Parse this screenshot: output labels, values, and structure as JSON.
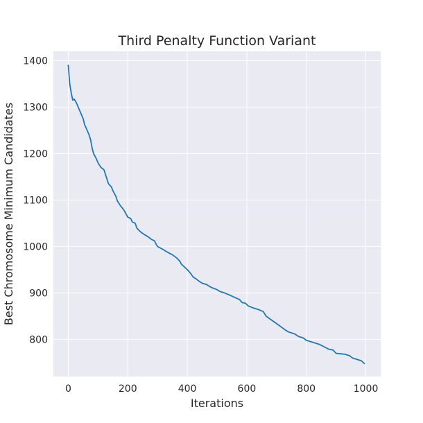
{
  "chart_data": {
    "type": "line",
    "title": "Third Penalty Function Variant",
    "xlabel": "Iterations",
    "ylabel": "Best Chromosome Minimum Candidates",
    "xlim": [
      -50,
      1050
    ],
    "ylim": [
      720,
      1420
    ],
    "xticks": [
      0,
      200,
      400,
      600,
      800,
      1000
    ],
    "yticks": [
      800,
      900,
      1000,
      1100,
      1200,
      1300,
      1400
    ],
    "grid": true,
    "background": "#eaeaf2",
    "grid_color": "#ffffff",
    "series": [
      {
        "color": "#1f77b4",
        "points": [
          [
            0,
            1390
          ],
          [
            5,
            1350
          ],
          [
            10,
            1330
          ],
          [
            15,
            1315
          ],
          [
            20,
            1317
          ],
          [
            25,
            1312
          ],
          [
            30,
            1305
          ],
          [
            40,
            1290
          ],
          [
            50,
            1275
          ],
          [
            55,
            1262
          ],
          [
            60,
            1255
          ],
          [
            70,
            1240
          ],
          [
            75,
            1230
          ],
          [
            80,
            1212
          ],
          [
            85,
            1200
          ],
          [
            95,
            1188
          ],
          [
            100,
            1180
          ],
          [
            110,
            1170
          ],
          [
            120,
            1165
          ],
          [
            125,
            1155
          ],
          [
            130,
            1145
          ],
          [
            135,
            1135
          ],
          [
            145,
            1128
          ],
          [
            150,
            1120
          ],
          [
            160,
            1108
          ],
          [
            165,
            1098
          ],
          [
            175,
            1088
          ],
          [
            185,
            1080
          ],
          [
            190,
            1075
          ],
          [
            200,
            1063
          ],
          [
            210,
            1060
          ],
          [
            215,
            1053
          ],
          [
            225,
            1050
          ],
          [
            230,
            1040
          ],
          [
            240,
            1033
          ],
          [
            250,
            1028
          ],
          [
            260,
            1024
          ],
          [
            270,
            1020
          ],
          [
            280,
            1015
          ],
          [
            290,
            1012
          ],
          [
            295,
            1005
          ],
          [
            300,
            1000
          ],
          [
            320,
            993
          ],
          [
            335,
            987
          ],
          [
            350,
            982
          ],
          [
            365,
            975
          ],
          [
            375,
            968
          ],
          [
            380,
            962
          ],
          [
            400,
            950
          ],
          [
            410,
            943
          ],
          [
            420,
            934
          ],
          [
            430,
            930
          ],
          [
            440,
            925
          ],
          [
            450,
            921
          ],
          [
            465,
            918
          ],
          [
            480,
            912
          ],
          [
            500,
            907
          ],
          [
            510,
            903
          ],
          [
            525,
            900
          ],
          [
            540,
            896
          ],
          [
            560,
            890
          ],
          [
            575,
            886
          ],
          [
            585,
            879
          ],
          [
            595,
            878
          ],
          [
            605,
            872
          ],
          [
            620,
            868
          ],
          [
            640,
            864
          ],
          [
            655,
            860
          ],
          [
            665,
            850
          ],
          [
            680,
            843
          ],
          [
            700,
            834
          ],
          [
            715,
            827
          ],
          [
            730,
            820
          ],
          [
            740,
            816
          ],
          [
            760,
            812
          ],
          [
            775,
            806
          ],
          [
            790,
            803
          ],
          [
            800,
            798
          ],
          [
            815,
            795
          ],
          [
            830,
            792
          ],
          [
            845,
            789
          ],
          [
            860,
            784
          ],
          [
            875,
            779
          ],
          [
            890,
            777
          ],
          [
            900,
            770
          ],
          [
            915,
            769
          ],
          [
            930,
            768
          ],
          [
            945,
            765
          ],
          [
            955,
            760
          ],
          [
            970,
            757
          ],
          [
            985,
            754
          ],
          [
            995,
            748
          ]
        ]
      }
    ]
  }
}
